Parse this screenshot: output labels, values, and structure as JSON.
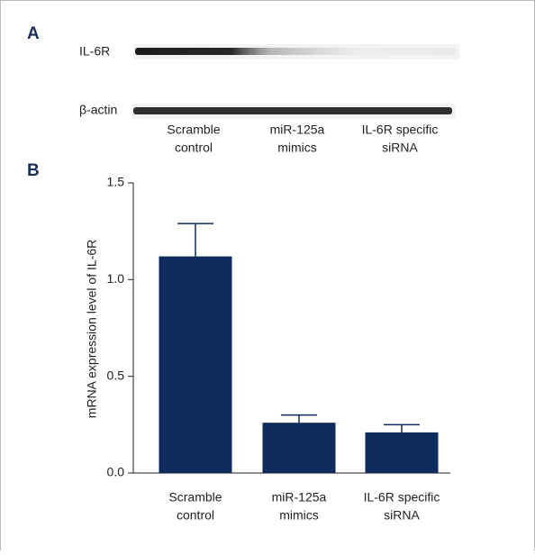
{
  "panels": {
    "a": "A",
    "b": "B"
  },
  "blot": {
    "rows": [
      "IL-6R",
      "β-actin"
    ]
  },
  "chart_data": {
    "type": "bar",
    "ylabel": "mRNA expression level of IL-6R",
    "categories": [
      [
        "Scramble",
        "control"
      ],
      [
        "miR-125a",
        "mimics"
      ],
      [
        "IL-6R specific",
        "siRNA"
      ]
    ],
    "values": [
      1.12,
      0.26,
      0.21
    ],
    "errors": [
      0.17,
      0.04,
      0.04
    ],
    "color": "#0f2a5c",
    "ylim": [
      0,
      1.5
    ],
    "yticks": [
      {
        "value": 0,
        "label": "0.0"
      },
      0.5,
      {
        "value": 1,
        "label": "1.0"
      },
      1.5
    ]
  }
}
